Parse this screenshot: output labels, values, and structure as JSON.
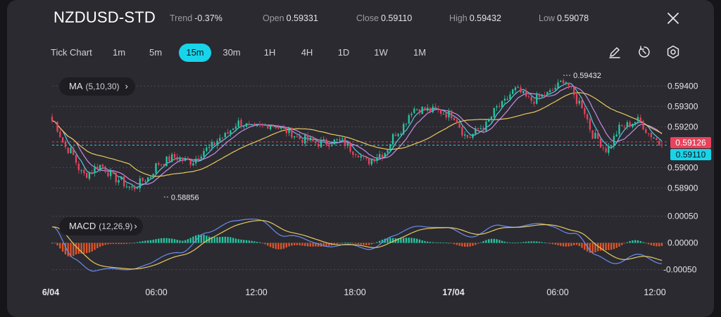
{
  "header": {
    "symbol": "NZDUSD-STD",
    "stats": [
      {
        "label": "Trend",
        "value": "-0.37%"
      },
      {
        "label": "Open",
        "value": "0.59331"
      },
      {
        "label": "Close",
        "value": "0.59110"
      },
      {
        "label": "High",
        "value": "0.59432"
      },
      {
        "label": "Low",
        "value": "0.59078"
      }
    ]
  },
  "toolbar": {
    "chart_type": "Tick Chart",
    "timeframes": [
      "1m",
      "5m",
      "15m",
      "30m",
      "1H",
      "4H",
      "1D",
      "1W",
      "1M"
    ],
    "active_timeframe": "15m",
    "icons": [
      "pencil-icon",
      "reset-icon",
      "settings-icon"
    ]
  },
  "indicators": {
    "ma": {
      "name": "MA",
      "params": "(5,10,30)"
    },
    "macd": {
      "name": "MACD",
      "params": "(12,26,9)"
    }
  },
  "price_axis": {
    "ticks": [
      "0.59400",
      "0.59300",
      "0.59200",
      "0.59000",
      "0.58900"
    ],
    "current_price": "0.59126",
    "last_price": "0.59110",
    "high_marker": "0.59432",
    "low_marker": "0.58856"
  },
  "macd_axis": {
    "ticks": [
      "0.00050",
      "0.00000",
      "-0.00050"
    ]
  },
  "time_axis": {
    "labels": [
      "6/04",
      "06:00",
      "12:00",
      "18:00",
      "17/04",
      "06:00",
      "12:00"
    ]
  },
  "colors": {
    "up": "#26c6a0",
    "down": "#e8425c",
    "accent": "#17d4ea",
    "ma5": "#5cc4e6",
    "ma10": "#c88de8",
    "ma30": "#e8c860",
    "macd_neg": "#e0562a"
  },
  "chart_data": {
    "type": "candlestick",
    "anchors": [
      [
        0,
        0.5923
      ],
      [
        6,
        0.5909
      ],
      [
        12,
        0.58965
      ],
      [
        18,
        0.5901
      ],
      [
        24,
        0.58945
      ],
      [
        30,
        0.589
      ],
      [
        36,
        0.5895
      ],
      [
        40,
        0.5902
      ],
      [
        46,
        0.5905
      ],
      [
        52,
        0.5903
      ],
      [
        58,
        0.5909
      ],
      [
        64,
        0.5915
      ],
      [
        70,
        0.5922
      ],
      [
        76,
        0.5919
      ],
      [
        82,
        0.59215
      ],
      [
        88,
        0.5918
      ],
      [
        94,
        0.5914
      ],
      [
        100,
        0.5912
      ],
      [
        108,
        0.5913
      ],
      [
        114,
        0.5908
      ],
      [
        118,
        0.5903
      ],
      [
        124,
        0.5907
      ],
      [
        130,
        0.5918
      ],
      [
        136,
        0.5929
      ],
      [
        144,
        0.5928
      ],
      [
        150,
        0.5926
      ],
      [
        156,
        0.5915
      ],
      [
        162,
        0.592
      ],
      [
        168,
        0.593
      ],
      [
        174,
        0.5938
      ],
      [
        180,
        0.5933
      ],
      [
        186,
        0.5936
      ],
      [
        190,
        0.594
      ],
      [
        192,
        0.59432
      ],
      [
        198,
        0.5932
      ],
      [
        204,
        0.5915
      ],
      [
        208,
        0.5909
      ],
      [
        214,
        0.592
      ],
      [
        220,
        0.5923
      ],
      [
        225,
        0.5916
      ],
      [
        229,
        0.5911
      ]
    ],
    "macd_anchors": [
      [
        0,
        0.0003
      ],
      [
        8,
        -0.0003
      ],
      [
        16,
        -0.0005
      ],
      [
        24,
        -0.00052
      ],
      [
        36,
        -0.0004
      ],
      [
        48,
        -0.00015
      ],
      [
        58,
        0.00015
      ],
      [
        68,
        0.00045
      ],
      [
        78,
        0.0004
      ],
      [
        88,
        0.00015
      ],
      [
        98,
        0.0
      ],
      [
        108,
        -5e-05
      ],
      [
        118,
        -0.0001
      ],
      [
        128,
        0.0001
      ],
      [
        138,
        0.00035
      ],
      [
        148,
        0.00025
      ],
      [
        158,
        0.00015
      ],
      [
        168,
        0.0003
      ],
      [
        178,
        0.00035
      ],
      [
        188,
        0.0003
      ],
      [
        196,
        0.0002
      ],
      [
        204,
        -0.00025
      ],
      [
        212,
        -0.00035
      ],
      [
        220,
        -0.00025
      ],
      [
        229,
        -0.00035
      ]
    ],
    "ylim": [
      0.5885,
      0.5946
    ],
    "macd_ylim": [
      -0.00065,
      0.0006
    ]
  }
}
